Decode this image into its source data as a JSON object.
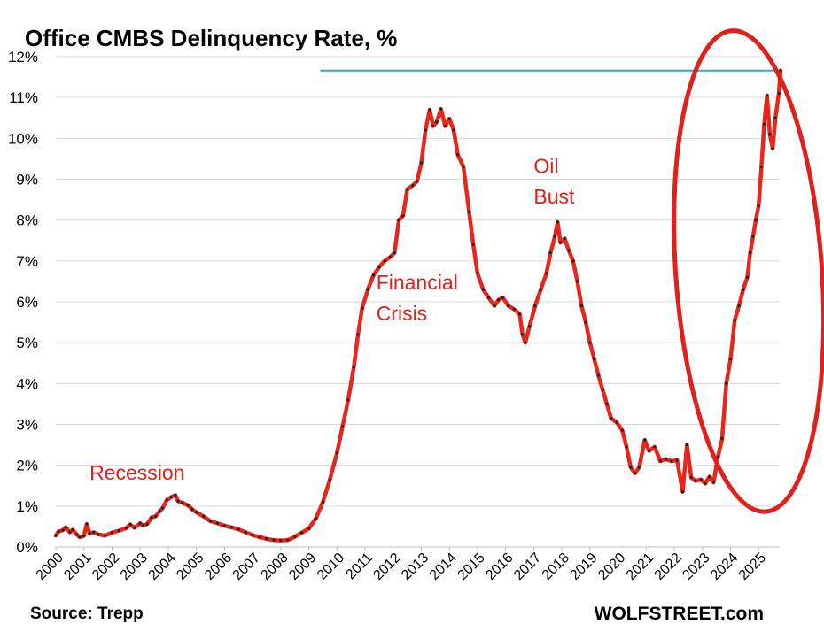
{
  "chart_data": {
    "type": "line",
    "title": "Office CMBS Delinquency Rate, %",
    "source": "Source: Trepp",
    "brand": "WOLFSTREET.com",
    "ylim": [
      0,
      12
    ],
    "xlim": [
      2000,
      2025.75
    ],
    "y_ticks": [
      "0%",
      "1%",
      "2%",
      "3%",
      "4%",
      "5%",
      "6%",
      "7%",
      "8%",
      "9%",
      "10%",
      "11%",
      "12%"
    ],
    "x_ticks": [
      "2000",
      "2001",
      "2002",
      "2003",
      "2004",
      "2005",
      "2006",
      "2007",
      "2008",
      "2009",
      "2010",
      "2011",
      "2012",
      "2013",
      "2014",
      "2015",
      "2016",
      "2017",
      "2018",
      "2019",
      "2020",
      "2021",
      "2022",
      "2023",
      "2024",
      "2025"
    ],
    "grid": true,
    "line_color": "#e8261c",
    "marker_color": "#222222",
    "reference_line": {
      "y": 11.66,
      "x_start": 2009.4,
      "x_end": 2025.6,
      "color": "#29a8dc"
    },
    "annotations": [
      {
        "text": "Recession",
        "x": 2001.2,
        "y": 1.65
      },
      {
        "text": "Financial",
        "x": 2011.4,
        "y": 6.3
      },
      {
        "text": "Crisis",
        "x": 2011.4,
        "y": 5.55
      },
      {
        "text": "Oil",
        "x": 2017.0,
        "y": 9.15
      },
      {
        "text": "Bust",
        "x": 2017.0,
        "y": 8.4
      }
    ],
    "highlight_ellipse": {
      "cx": 2024.65,
      "cy": 6.75,
      "rx": 2.6,
      "ry": 5.9,
      "color": "#e0201b"
    },
    "series": [
      {
        "points": [
          [
            2000.0,
            0.28
          ],
          [
            2000.1,
            0.38
          ],
          [
            2000.25,
            0.41
          ],
          [
            2000.35,
            0.48
          ],
          [
            2000.5,
            0.36
          ],
          [
            2000.6,
            0.42
          ],
          [
            2000.75,
            0.3
          ],
          [
            2000.85,
            0.24
          ],
          [
            2001.0,
            0.27
          ],
          [
            2001.1,
            0.56
          ],
          [
            2001.2,
            0.33
          ],
          [
            2001.35,
            0.36
          ],
          [
            2001.5,
            0.31
          ],
          [
            2001.75,
            0.28
          ],
          [
            2002.0,
            0.35
          ],
          [
            2002.25,
            0.4
          ],
          [
            2002.5,
            0.46
          ],
          [
            2002.65,
            0.55
          ],
          [
            2002.8,
            0.47
          ],
          [
            2003.0,
            0.58
          ],
          [
            2003.1,
            0.52
          ],
          [
            2003.25,
            0.56
          ],
          [
            2003.4,
            0.72
          ],
          [
            2003.55,
            0.75
          ],
          [
            2003.7,
            0.88
          ],
          [
            2003.8,
            0.95
          ],
          [
            2003.95,
            1.15
          ],
          [
            2004.1,
            1.22
          ],
          [
            2004.25,
            1.27
          ],
          [
            2004.35,
            1.12
          ],
          [
            2004.5,
            1.08
          ],
          [
            2004.7,
            1.02
          ],
          [
            2004.85,
            0.92
          ],
          [
            2005.0,
            0.85
          ],
          [
            2005.25,
            0.75
          ],
          [
            2005.5,
            0.63
          ],
          [
            2005.75,
            0.58
          ],
          [
            2006.0,
            0.52
          ],
          [
            2006.25,
            0.48
          ],
          [
            2006.5,
            0.43
          ],
          [
            2006.75,
            0.36
          ],
          [
            2007.0,
            0.29
          ],
          [
            2007.25,
            0.24
          ],
          [
            2007.5,
            0.2
          ],
          [
            2007.75,
            0.17
          ],
          [
            2008.0,
            0.16
          ],
          [
            2008.25,
            0.17
          ],
          [
            2008.5,
            0.25
          ],
          [
            2008.75,
            0.35
          ],
          [
            2009.0,
            0.45
          ],
          [
            2009.25,
            0.7
          ],
          [
            2009.5,
            1.1
          ],
          [
            2009.75,
            1.65
          ],
          [
            2010.0,
            2.3
          ],
          [
            2010.2,
            2.95
          ],
          [
            2010.4,
            3.6
          ],
          [
            2010.6,
            4.4
          ],
          [
            2010.75,
            5.2
          ],
          [
            2010.9,
            5.85
          ],
          [
            2011.1,
            6.3
          ],
          [
            2011.3,
            6.65
          ],
          [
            2011.5,
            6.85
          ],
          [
            2011.7,
            7.0
          ],
          [
            2011.9,
            7.1
          ],
          [
            2012.05,
            7.2
          ],
          [
            2012.2,
            8.0
          ],
          [
            2012.35,
            8.1
          ],
          [
            2012.5,
            8.75
          ],
          [
            2012.7,
            8.85
          ],
          [
            2012.85,
            8.95
          ],
          [
            2013.0,
            9.4
          ],
          [
            2013.15,
            10.2
          ],
          [
            2013.3,
            10.7
          ],
          [
            2013.42,
            10.3
          ],
          [
            2013.55,
            10.4
          ],
          [
            2013.7,
            10.72
          ],
          [
            2013.85,
            10.3
          ],
          [
            2014.0,
            10.48
          ],
          [
            2014.15,
            10.2
          ],
          [
            2014.3,
            9.6
          ],
          [
            2014.5,
            9.3
          ],
          [
            2014.7,
            8.2
          ],
          [
            2014.85,
            7.4
          ],
          [
            2015.0,
            6.7
          ],
          [
            2015.2,
            6.3
          ],
          [
            2015.4,
            6.1
          ],
          [
            2015.6,
            5.9
          ],
          [
            2015.75,
            6.05
          ],
          [
            2015.9,
            6.1
          ],
          [
            2016.1,
            5.9
          ],
          [
            2016.3,
            5.82
          ],
          [
            2016.5,
            5.7
          ],
          [
            2016.6,
            5.2
          ],
          [
            2016.7,
            5.0
          ],
          [
            2016.85,
            5.4
          ],
          [
            2017.05,
            5.9
          ],
          [
            2017.25,
            6.3
          ],
          [
            2017.45,
            6.7
          ],
          [
            2017.6,
            7.2
          ],
          [
            2017.75,
            7.6
          ],
          [
            2017.85,
            7.95
          ],
          [
            2017.95,
            7.45
          ],
          [
            2018.1,
            7.55
          ],
          [
            2018.25,
            7.25
          ],
          [
            2018.4,
            7.0
          ],
          [
            2018.55,
            6.5
          ],
          [
            2018.7,
            5.9
          ],
          [
            2018.85,
            5.5
          ],
          [
            2019.0,
            5.0
          ],
          [
            2019.15,
            4.6
          ],
          [
            2019.3,
            4.2
          ],
          [
            2019.45,
            3.85
          ],
          [
            2019.6,
            3.5
          ],
          [
            2019.75,
            3.15
          ],
          [
            2019.95,
            3.05
          ],
          [
            2020.15,
            2.85
          ],
          [
            2020.3,
            2.45
          ],
          [
            2020.45,
            1.95
          ],
          [
            2020.6,
            1.8
          ],
          [
            2020.75,
            1.95
          ],
          [
            2020.95,
            2.62
          ],
          [
            2021.1,
            2.35
          ],
          [
            2021.3,
            2.45
          ],
          [
            2021.5,
            2.1
          ],
          [
            2021.7,
            2.15
          ],
          [
            2021.9,
            2.1
          ],
          [
            2022.1,
            2.12
          ],
          [
            2022.3,
            1.35
          ],
          [
            2022.45,
            2.5
          ],
          [
            2022.6,
            1.7
          ],
          [
            2022.75,
            1.62
          ],
          [
            2022.95,
            1.65
          ],
          [
            2023.1,
            1.55
          ],
          [
            2023.25,
            1.72
          ],
          [
            2023.4,
            1.58
          ],
          [
            2023.55,
            2.2
          ],
          [
            2023.7,
            2.65
          ],
          [
            2023.85,
            4.0
          ],
          [
            2024.0,
            4.6
          ],
          [
            2024.15,
            5.55
          ],
          [
            2024.3,
            5.9
          ],
          [
            2024.45,
            6.3
          ],
          [
            2024.6,
            6.6
          ],
          [
            2024.7,
            7.2
          ],
          [
            2024.8,
            7.6
          ],
          [
            2024.9,
            8.0
          ],
          [
            2025.0,
            8.35
          ],
          [
            2025.1,
            9.3
          ],
          [
            2025.2,
            10.35
          ],
          [
            2025.3,
            11.05
          ],
          [
            2025.4,
            10.1
          ],
          [
            2025.5,
            9.75
          ],
          [
            2025.6,
            10.5
          ],
          [
            2025.72,
            11.1
          ],
          [
            2025.78,
            11.66
          ]
        ]
      }
    ]
  }
}
